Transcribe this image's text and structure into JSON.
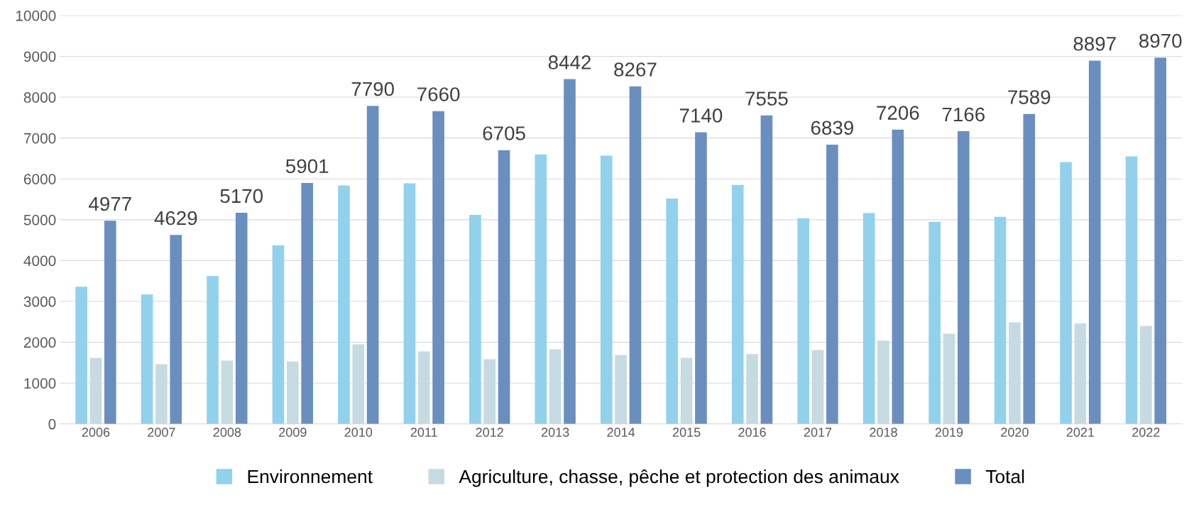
{
  "chart_data": {
    "type": "bar",
    "categories": [
      "2006",
      "2007",
      "2008",
      "2009",
      "2010",
      "2011",
      "2012",
      "2013",
      "2014",
      "2015",
      "2016",
      "2017",
      "2018",
      "2019",
      "2020",
      "2021",
      "2022"
    ],
    "series": [
      {
        "name": "Environnement",
        "color": "#92d1ec",
        "values": [
          3360,
          3170,
          3620,
          4370,
          5840,
          5890,
          5120,
          6600,
          6570,
          5520,
          5850,
          5035,
          5160,
          4950,
          5070,
          6410,
          6550
        ]
      },
      {
        "name": "Agriculture, chasse, pêche et protection des animaux",
        "color": "#c6dbe1",
        "values": [
          1620,
          1465,
          1550,
          1530,
          1950,
          1775,
          1585,
          1830,
          1690,
          1620,
          1710,
          1810,
          2040,
          2210,
          2490,
          2460,
          2400
        ]
      },
      {
        "name": "Total",
        "color": "#6a8fbe",
        "values": [
          4977,
          4629,
          5170,
          5901,
          7790,
          7660,
          6705,
          8442,
          8267,
          7140,
          7555,
          6839,
          7206,
          7166,
          7589,
          8897,
          8970
        ],
        "value_labels": [
          "4977",
          "4629",
          "5170",
          "5901",
          "7790",
          "7660",
          "6705",
          "8442",
          "8267",
          "7140",
          "7555",
          "6839",
          "7206",
          "7166",
          "7589",
          "8897",
          "8970"
        ]
      }
    ],
    "ylim": [
      0,
      10000
    ],
    "yticks": [
      0,
      1000,
      2000,
      3000,
      4000,
      5000,
      6000,
      7000,
      8000,
      9000,
      10000
    ],
    "grid": "y",
    "legend": "bottom"
  }
}
